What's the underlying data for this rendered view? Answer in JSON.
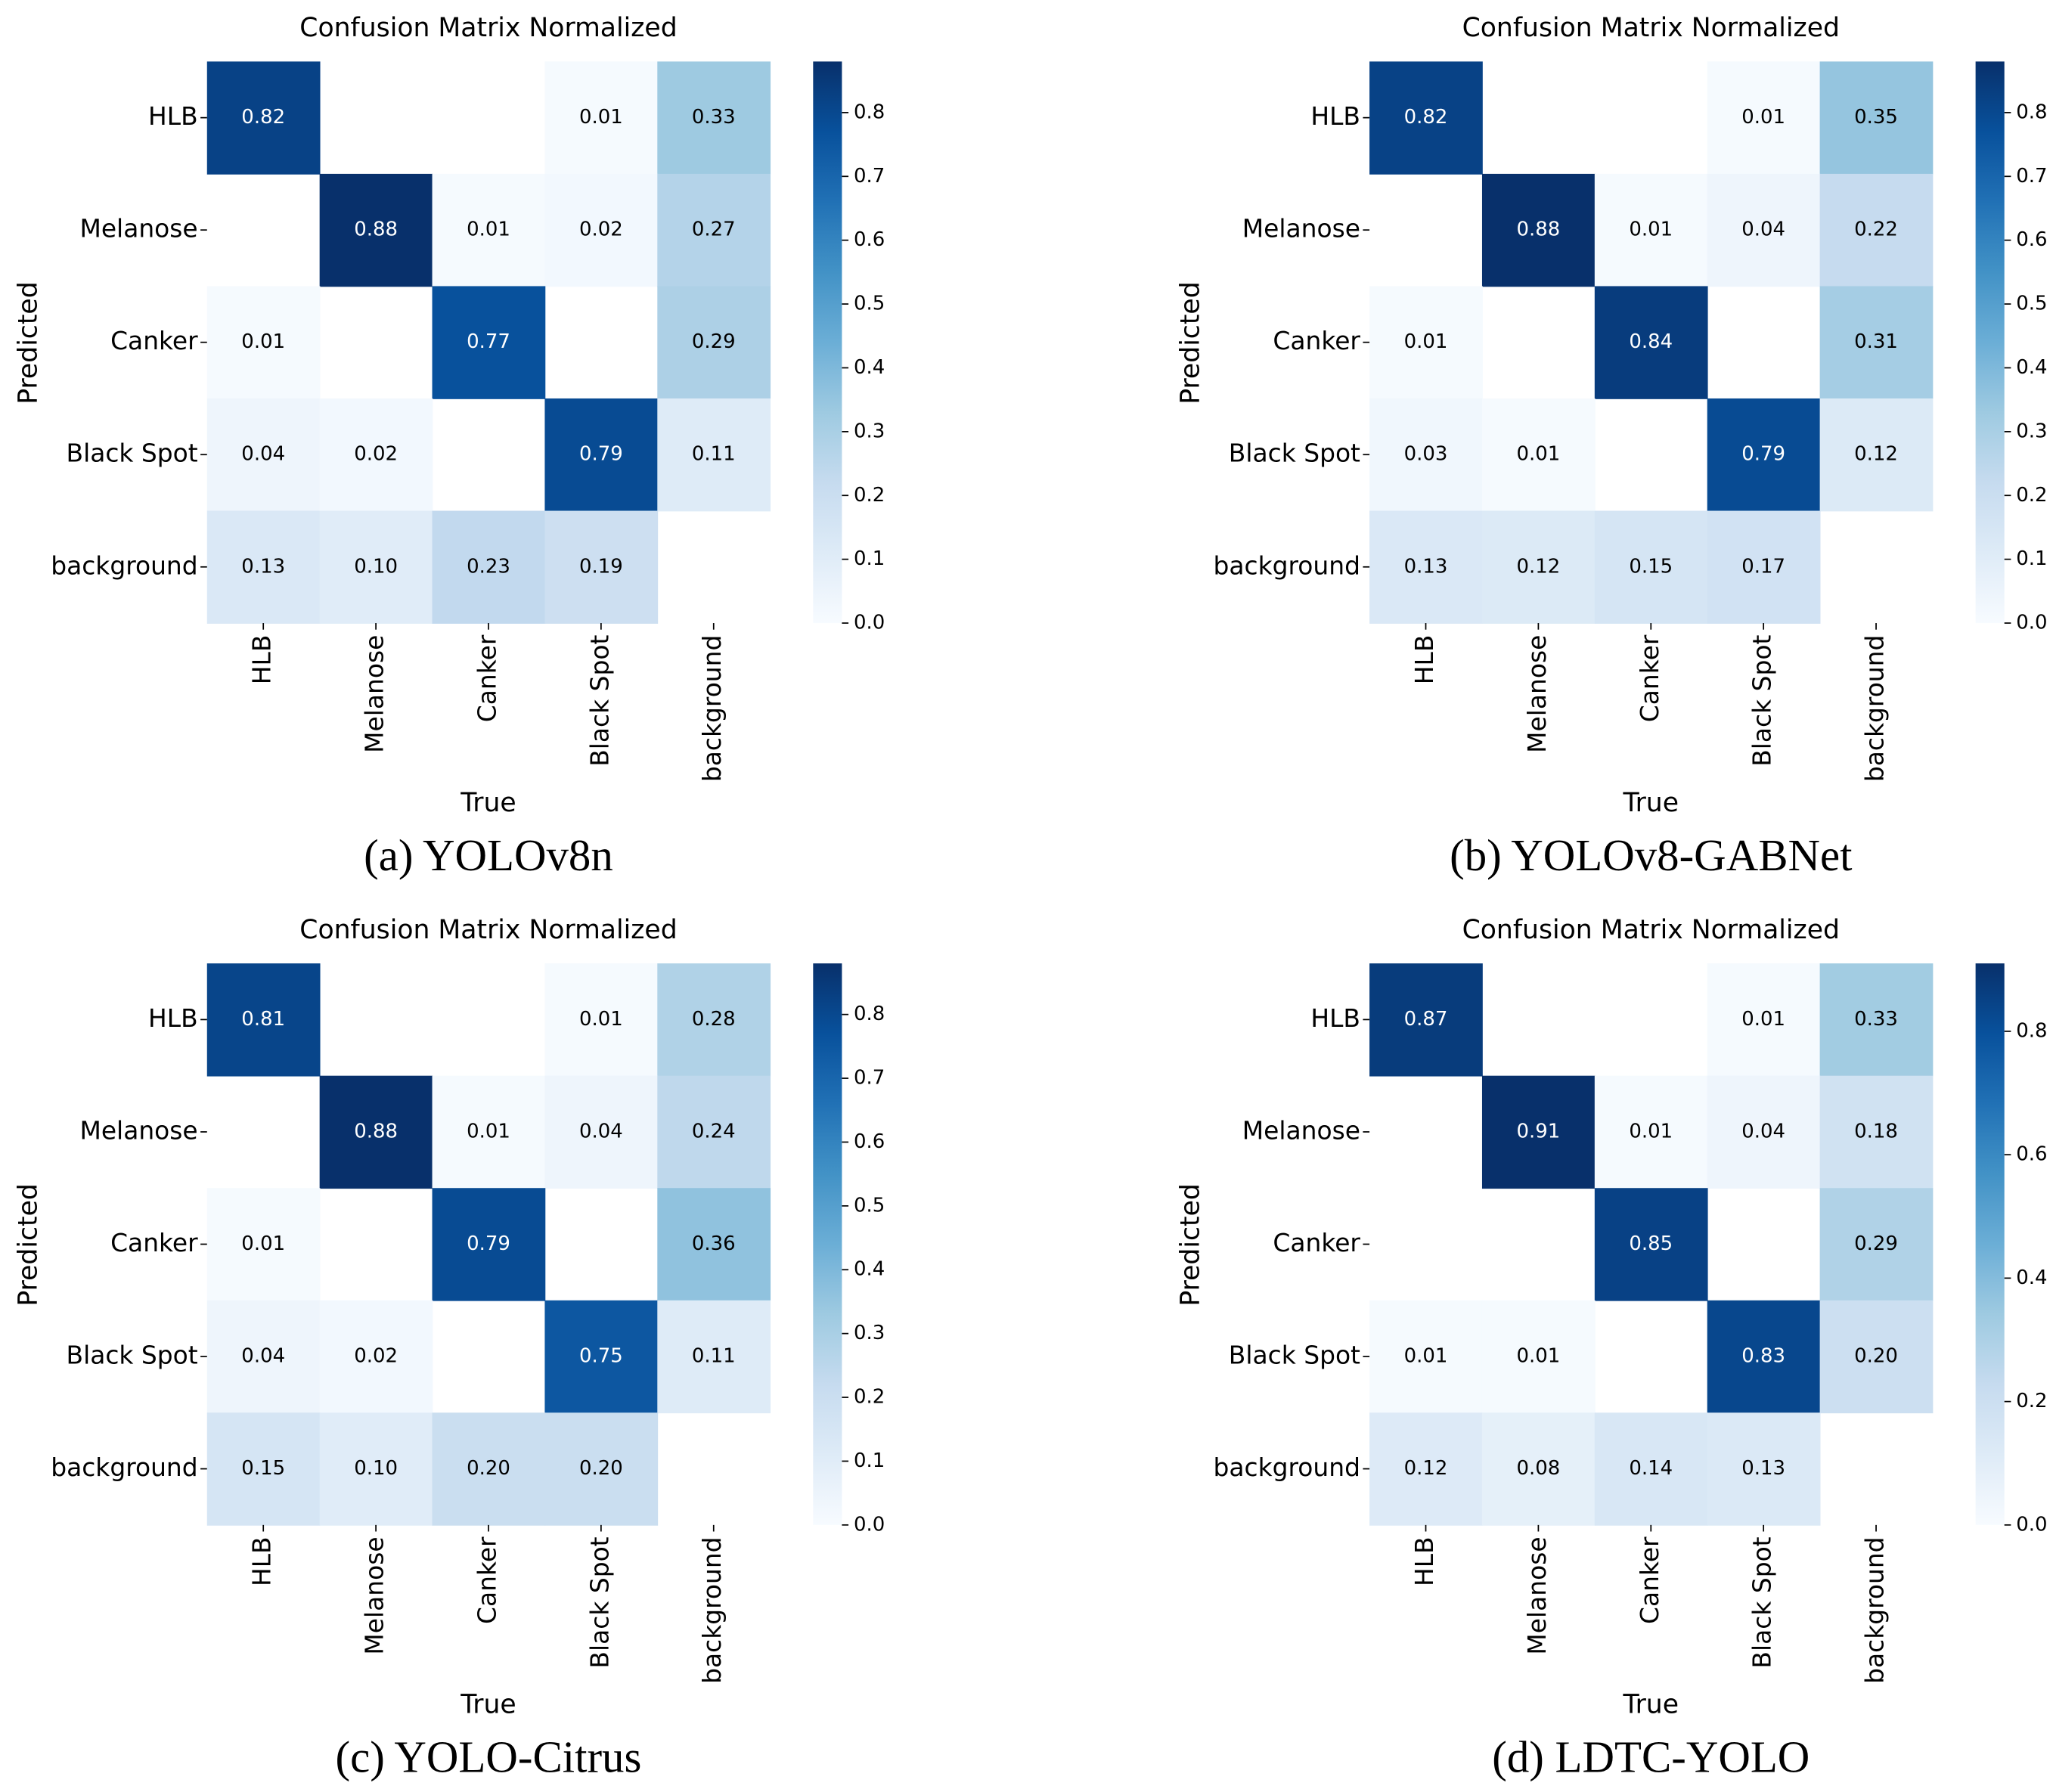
{
  "chart_data": [
    {
      "type": "heatmap",
      "title": "Confusion Matrix Normalized",
      "caption": "(a) YOLOv8n",
      "x_label": "True",
      "y_label": "Predicted",
      "x_categories": [
        "HLB",
        "Melanose",
        "Canker",
        "Black Spot",
        "background"
      ],
      "y_categories": [
        "HLB",
        "Melanose",
        "Canker",
        "Black Spot",
        "background"
      ],
      "values": [
        [
          0.82,
          null,
          null,
          0.01,
          0.33
        ],
        [
          null,
          0.88,
          0.01,
          0.02,
          0.27
        ],
        [
          0.01,
          null,
          0.77,
          null,
          0.29
        ],
        [
          0.04,
          0.02,
          null,
          0.79,
          0.11
        ],
        [
          0.13,
          0.1,
          0.23,
          0.19,
          null
        ]
      ],
      "value_labels": [
        [
          "0.82",
          null,
          null,
          "0.01",
          "0.33"
        ],
        [
          null,
          "0.88",
          "0.01",
          "0.02",
          "0.27"
        ],
        [
          "0.01",
          null,
          "0.77",
          null,
          "0.29"
        ],
        [
          "0.04",
          "0.02",
          null,
          "0.79",
          "0.11"
        ],
        [
          "0.13",
          "0.10",
          "0.23",
          "0.19",
          null
        ]
      ],
      "colormap": "Blues",
      "clim": [
        0,
        0.88
      ],
      "cticks": [
        {
          "value": 0,
          "label": "0.0"
        },
        0.1,
        0.2,
        0.3,
        0.4,
        0.5,
        0.6,
        0.7,
        0.8
      ]
    },
    {
      "type": "heatmap",
      "title": "Confusion Matrix Normalized",
      "caption": "(b) YOLOv8-GABNet",
      "x_label": "True",
      "y_label": "Predicted",
      "x_categories": [
        "HLB",
        "Melanose",
        "Canker",
        "Black Spot",
        "background"
      ],
      "y_categories": [
        "HLB",
        "Melanose",
        "Canker",
        "Black Spot",
        "background"
      ],
      "values": [
        [
          0.82,
          null,
          null,
          0.01,
          0.35
        ],
        [
          null,
          0.88,
          0.01,
          0.04,
          0.22
        ],
        [
          0.01,
          null,
          0.84,
          null,
          0.31
        ],
        [
          0.03,
          0.01,
          null,
          0.79,
          0.12
        ],
        [
          0.13,
          0.12,
          0.15,
          0.17,
          null
        ]
      ],
      "value_labels": [
        [
          "0.82",
          null,
          null,
          "0.01",
          "0.35"
        ],
        [
          null,
          "0.88",
          "0.01",
          "0.04",
          "0.22"
        ],
        [
          "0.01",
          null,
          "0.84",
          null,
          "0.31"
        ],
        [
          "0.03",
          "0.01",
          null,
          "0.79",
          "0.12"
        ],
        [
          "0.13",
          "0.12",
          "0.15",
          "0.17",
          null
        ]
      ],
      "colormap": "Blues",
      "clim": [
        0,
        0.88
      ],
      "cticks": [
        {
          "value": 0,
          "label": "0.0"
        },
        0.1,
        0.2,
        0.3,
        0.4,
        0.5,
        0.6,
        0.7,
        0.8
      ]
    },
    {
      "type": "heatmap",
      "title": "Confusion Matrix Normalized",
      "caption": "(c) YOLO-Citrus",
      "x_label": "True",
      "y_label": "Predicted",
      "x_categories": [
        "HLB",
        "Melanose",
        "Canker",
        "Black Spot",
        "background"
      ],
      "y_categories": [
        "HLB",
        "Melanose",
        "Canker",
        "Black Spot",
        "background"
      ],
      "values": [
        [
          0.81,
          null,
          null,
          0.01,
          0.28
        ],
        [
          null,
          0.88,
          0.01,
          0.04,
          0.24
        ],
        [
          0.01,
          null,
          0.79,
          null,
          0.36
        ],
        [
          0.04,
          0.02,
          null,
          0.75,
          0.11
        ],
        [
          0.15,
          0.1,
          0.2,
          0.2,
          null
        ]
      ],
      "value_labels": [
        [
          "0.81",
          null,
          null,
          "0.01",
          "0.28"
        ],
        [
          null,
          "0.88",
          "0.01",
          "0.04",
          "0.24"
        ],
        [
          "0.01",
          null,
          "0.79",
          null,
          "0.36"
        ],
        [
          "0.04",
          "0.02",
          null,
          "0.75",
          "0.11"
        ],
        [
          "0.15",
          "0.10",
          "0.20",
          "0.20",
          null
        ]
      ],
      "colormap": "Blues",
      "clim": [
        0,
        0.88
      ],
      "cticks": [
        {
          "value": 0,
          "label": "0.0"
        },
        0.1,
        0.2,
        0.3,
        0.4,
        0.5,
        0.6,
        0.7,
        0.8
      ]
    },
    {
      "type": "heatmap",
      "title": "Confusion Matrix Normalized",
      "caption": "(d) LDTC-YOLO",
      "x_label": "True",
      "y_label": "Predicted",
      "x_categories": [
        "HLB",
        "Melanose",
        "Canker",
        "Black Spot",
        "background"
      ],
      "y_categories": [
        "HLB",
        "Melanose",
        "Canker",
        "Black Spot",
        "background"
      ],
      "values": [
        [
          0.87,
          null,
          null,
          0.01,
          0.33
        ],
        [
          null,
          0.91,
          0.01,
          0.04,
          0.18
        ],
        [
          null,
          null,
          0.85,
          null,
          0.29
        ],
        [
          0.01,
          0.01,
          null,
          0.83,
          0.2
        ],
        [
          0.12,
          0.08,
          0.14,
          0.13,
          null
        ]
      ],
      "value_labels": [
        [
          "0.87",
          null,
          null,
          "0.01",
          "0.33"
        ],
        [
          null,
          "0.91",
          "0.01",
          "0.04",
          "0.18"
        ],
        [
          null,
          null,
          "0.85",
          null,
          "0.29"
        ],
        [
          "0.01",
          "0.01",
          null,
          "0.83",
          "0.20"
        ],
        [
          "0.12",
          "0.08",
          "0.14",
          "0.13",
          null
        ]
      ],
      "colormap": "Blues",
      "clim": [
        0,
        0.91
      ],
      "cticks": [
        {
          "value": 0,
          "label": "0.0"
        },
        0.2,
        0.4,
        0.6,
        0.8
      ]
    }
  ]
}
